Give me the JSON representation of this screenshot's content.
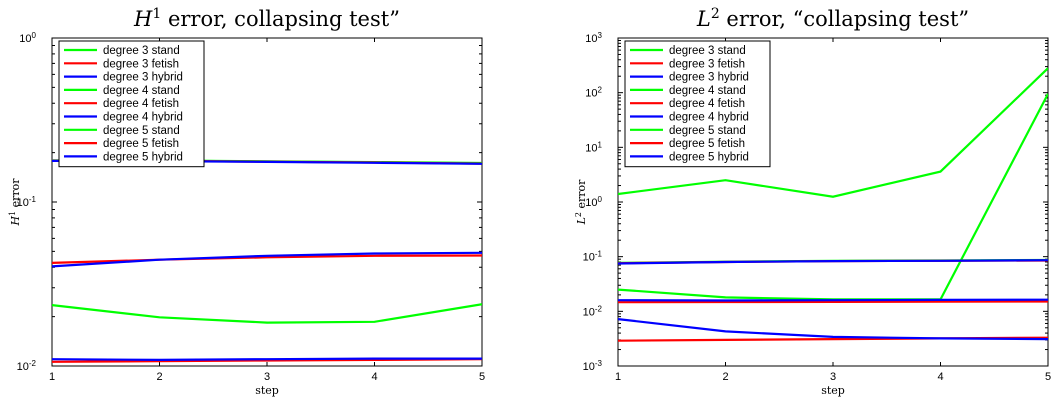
{
  "chart_data": [
    {
      "type": "line",
      "title_prefix": "H",
      "title_sup": "1",
      "title_suffix": " error, collapsing test”",
      "xlabel": "step",
      "ylabel_prefix": "H",
      "ylabel_sup": "1",
      "ylabel_suffix": " error",
      "xscale": "linear",
      "yscale": "log",
      "xlim": [
        1,
        5
      ],
      "ylim": [
        0.01,
        1
      ],
      "xticks": [
        "1",
        "2",
        "3",
        "4",
        "5"
      ],
      "yticks": [
        {
          "value": 0.01,
          "base": "10",
          "exp": "-2"
        },
        {
          "value": 0.1,
          "base": "10",
          "exp": "-1"
        },
        {
          "value": 1,
          "base": "10",
          "exp": "0"
        }
      ],
      "legend_position": "top-left",
      "x": [
        1,
        2,
        3,
        4,
        5
      ],
      "series": [
        {
          "name": "degree 3 stand",
          "color": "#00ff00",
          "values": [
            0.0235,
            0.0198,
            0.0184,
            0.0186,
            0.0238
          ]
        },
        {
          "name": "degree 3 fetish",
          "color": "#ff0000",
          "values": [
            0.0106,
            0.0107,
            0.0108,
            0.0109,
            0.011
          ]
        },
        {
          "name": "degree 3 hybrid",
          "color": "#0000ff",
          "values": [
            0.011,
            0.0109,
            0.011,
            0.0111,
            0.0111
          ]
        },
        {
          "name": "degree 4 stand",
          "color": "#00ff00",
          "values": [
            0.179,
            0.179,
            0.177,
            0.175,
            0.173
          ]
        },
        {
          "name": "degree 4 fetish",
          "color": "#ff0000",
          "values": [
            0.0425,
            0.0445,
            0.046,
            0.047,
            0.0472
          ]
        },
        {
          "name": "degree 4 hybrid",
          "color": "#0000ff",
          "values": [
            0.0405,
            0.0445,
            0.047,
            0.0485,
            0.049
          ]
        },
        {
          "name": "degree 5 stand",
          "color": "#00ff00",
          "values": [
            0.179,
            0.1785,
            0.1765,
            0.1745,
            0.172
          ]
        },
        {
          "name": "degree 5 fetish",
          "color": "#ff0000",
          "values": [
            0.1785,
            0.178,
            0.176,
            0.174,
            0.1715
          ]
        },
        {
          "name": "degree 5 hybrid",
          "color": "#0000ff",
          "values": [
            0.178,
            0.1775,
            0.1755,
            0.1735,
            0.171
          ]
        }
      ]
    },
    {
      "type": "line",
      "title_prefix": "L",
      "title_sup": "2",
      "title_suffix": " error, “collapsing test”",
      "xlabel": "step",
      "ylabel_prefix": "L",
      "ylabel_sup": "2",
      "ylabel_suffix": " error",
      "xscale": "linear",
      "yscale": "log",
      "xlim": [
        1,
        5
      ],
      "ylim": [
        0.001,
        1000
      ],
      "xticks": [
        "1",
        "2",
        "3",
        "4",
        "5"
      ],
      "yticks": [
        {
          "value": 0.001,
          "base": "10",
          "exp": "-3"
        },
        {
          "value": 0.01,
          "base": "10",
          "exp": "-2"
        },
        {
          "value": 0.1,
          "base": "10",
          "exp": "-1"
        },
        {
          "value": 1,
          "base": "10",
          "exp": "0"
        },
        {
          "value": 10,
          "base": "10",
          "exp": "1"
        },
        {
          "value": 100,
          "base": "10",
          "exp": "2"
        },
        {
          "value": 1000,
          "base": "10",
          "exp": "3"
        }
      ],
      "legend_position": "top-left",
      "x": [
        1,
        2,
        3,
        4,
        5
      ],
      "series": [
        {
          "name": "degree 3 stand",
          "color": "#00ff00",
          "values": [
            1.4,
            2.5,
            1.25,
            3.6,
            280
          ]
        },
        {
          "name": "degree 3 fetish",
          "color": "#ff0000",
          "values": [
            0.0029,
            0.003,
            0.0031,
            0.0032,
            0.0033
          ]
        },
        {
          "name": "degree 3 hybrid",
          "color": "#0000ff",
          "values": [
            0.0072,
            0.0043,
            0.0034,
            0.0032,
            0.0031
          ]
        },
        {
          "name": "degree 4 stand",
          "color": "#00ff00",
          "values": [
            0.025,
            0.018,
            0.0165,
            0.0165,
            95
          ]
        },
        {
          "name": "degree 4 fetish",
          "color": "#ff0000",
          "values": [
            0.0147,
            0.0148,
            0.0149,
            0.015,
            0.0151
          ]
        },
        {
          "name": "degree 4 hybrid",
          "color": "#0000ff",
          "values": [
            0.016,
            0.0158,
            0.016,
            0.0162,
            0.0163
          ]
        },
        {
          "name": "degree 5 stand",
          "color": "#00ff00",
          "values": [
            0.077,
            0.081,
            0.084,
            0.085,
            0.087
          ]
        },
        {
          "name": "degree 5 fetish",
          "color": "#ff0000",
          "values": [
            0.076,
            0.08,
            0.083,
            0.084,
            0.085
          ]
        },
        {
          "name": "degree 5 hybrid",
          "color": "#0000ff",
          "values": [
            0.075,
            0.08,
            0.083,
            0.084,
            0.086
          ]
        }
      ]
    }
  ]
}
